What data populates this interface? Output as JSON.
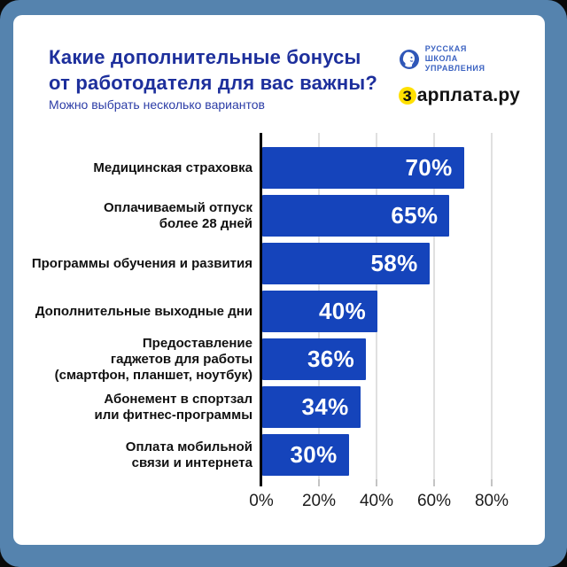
{
  "header": {
    "title_line1": "Какие дополнительные бонусы",
    "title_line2": "от работодателя для вас важны?",
    "subtitle": "Можно выбрать несколько вариантов"
  },
  "logos": {
    "rsu": {
      "line1": "РУССКАЯ",
      "line2": "ШКОЛА",
      "line3": "УПРАВЛЕНИЯ"
    },
    "zarplata": {
      "first_letter": "з",
      "rest": "арплата.ру"
    }
  },
  "chart_data": {
    "type": "bar",
    "orientation": "horizontal",
    "title": "Какие дополнительные бонусы от работодателя для вас важны?",
    "subtitle": "Можно выбрать несколько вариантов",
    "categories": [
      "Медицинская страховка",
      "Оплачиваемый отпуск более 28 дней",
      "Программы обучения и развития",
      "Дополнительные выходные дни",
      "Предоставление гаджетов для работы (смартфон, планшет, ноутбук)",
      "Абонемент в спортзал или фитнес-программы",
      "Оплата мобильной связи и интернета"
    ],
    "values": [
      70,
      65,
      58,
      40,
      36,
      34,
      30
    ],
    "rows": [
      {
        "label": "Медицинская страховка",
        "value": 70,
        "value_label": "70%"
      },
      {
        "label": "Оплачиваемый отпуск\nболее 28 дней",
        "value": 65,
        "value_label": "65%"
      },
      {
        "label": "Программы обучения и развития",
        "value": 58,
        "value_label": "58%"
      },
      {
        "label": "Дополнительные выходные дни",
        "value": 40,
        "value_label": "40%"
      },
      {
        "label": "Предоставление\nгаджетов для работы\n(смартфон, планшет, ноутбук)",
        "value": 36,
        "value_label": "36%"
      },
      {
        "label": "Абонемент в спортзал\nили фитнес-программы",
        "value": 34,
        "value_label": "34%"
      },
      {
        "label": "Оплата мобильной\nсвязи и интернета",
        "value": 30,
        "value_label": "30%"
      }
    ],
    "x_ticks": [
      "0%",
      "20%",
      "40%",
      "60%",
      "80%"
    ],
    "xlim": [
      0,
      100
    ],
    "grid": "vertical-gridlines",
    "value_labels_position": "inside-end",
    "xlabel": "",
    "ylabel": ""
  },
  "colors": {
    "bar": "#1544bb",
    "title": "#1d2f9c",
    "subtitle": "#2b3ca6",
    "frame": "#5583ae",
    "card": "#ffffff",
    "value_text": "#ffffff",
    "label_text": "#111111",
    "grid_line": "#e0e0e0",
    "axis_line": "#000000",
    "tick_gray": "#c4c4c4",
    "zarplata_yellow": "#ffe000",
    "rsu_blue": "#3b62c1"
  }
}
